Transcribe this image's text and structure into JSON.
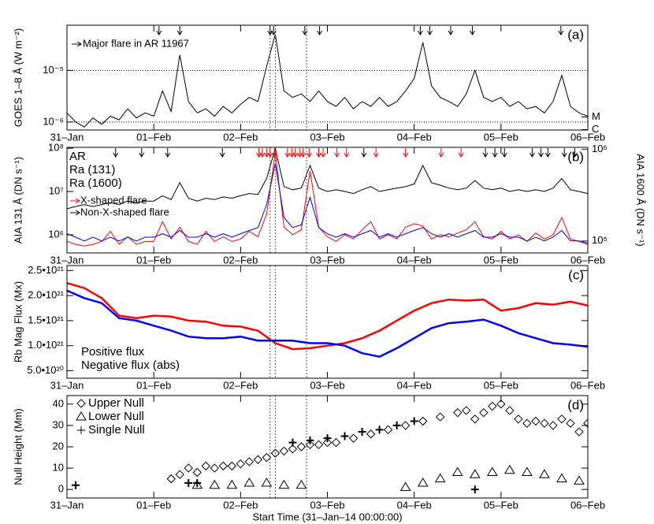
{
  "chart_data": [
    {
      "type": "line",
      "panel_label": "(a)",
      "ylabel": "GOES 1–8 Å (W m⁻²)",
      "ylog": true,
      "grid": true,
      "xlim": [
        0,
        6
      ],
      "ylim": [
        7e-07,
        7.5e-05
      ],
      "xticks": [
        {
          "value": 0,
          "label": "31–Jan"
        },
        {
          "value": 1,
          "label": "01–Feb"
        },
        {
          "value": 2,
          "label": "02–Feb"
        },
        {
          "value": 3,
          "label": "03–Feb"
        },
        {
          "value": 4,
          "label": "04–Feb"
        },
        {
          "value": 5,
          "label": "05–Feb"
        },
        {
          "value": 6,
          "label": "06–Feb"
        }
      ],
      "yticks": [
        {
          "value": 1e-06,
          "label": "10⁻⁶"
        },
        {
          "value": 1e-05,
          "label": "10⁻⁵"
        }
      ],
      "y2lim": [
        7e-07,
        7.5e-05
      ],
      "y2ticks": [
        {
          "value": 1e-06,
          "label": "C"
        },
        {
          "value": 1e-05,
          "label": "M"
        }
      ],
      "vlines": [
        2.34,
        2.4,
        2.76
      ],
      "annotation": "Major flare in AR 11967",
      "flare_times": [
        1.06,
        1.3,
        2.34,
        2.38,
        2.74,
        2.91,
        4.07,
        4.18,
        4.42,
        4.67,
        5.69
      ],
      "x": [
        0,
        0.1,
        0.2,
        0.3,
        0.4,
        0.5,
        0.6,
        0.7,
        0.8,
        0.9,
        1,
        1.1,
        1.2,
        1.3,
        1.4,
        1.5,
        1.6,
        1.7,
        1.8,
        1.9,
        2,
        2.1,
        2.2,
        2.3,
        2.4,
        2.5,
        2.6,
        2.7,
        2.8,
        2.9,
        3,
        3.1,
        3.2,
        3.3,
        3.4,
        3.5,
        3.6,
        3.7,
        3.8,
        3.9,
        4,
        4.1,
        4.2,
        4.3,
        4.4,
        4.5,
        4.6,
        4.7,
        4.8,
        4.9,
        5,
        5.1,
        5.2,
        5.3,
        5.4,
        5.5,
        5.6,
        5.7,
        5.8,
        5.9,
        6
      ],
      "series": [
        {
          "color": "#000000",
          "values": [
            1.5e-06,
            1e-06,
            8e-07,
            1.2e-06,
            9e-07,
            1.3e-06,
            1.1e-06,
            1.8e-06,
            1.2e-06,
            1.5e-06,
            1.3e-06,
            4e-06,
            1.6e-06,
            2e-05,
            2.5e-06,
            1.5e-06,
            1.8e-06,
            1.3e-06,
            2e-06,
            1.5e-06,
            2.2e-06,
            3e-06,
            2.5e-06,
            1.2e-05,
            5e-05,
            4e-06,
            3e-06,
            3.5e-06,
            2.5e-06,
            4e-06,
            2.5e-06,
            2e-06,
            3e-06,
            1.8e-06,
            2.5e-06,
            2e-06,
            3e-06,
            2e-06,
            2.5e-06,
            4e-06,
            7e-06,
            3.5e-05,
            5e-06,
            3e-06,
            2.5e-06,
            2e-06,
            3.5e-06,
            1e-05,
            3e-06,
            2.5e-06,
            3e-06,
            2e-06,
            2.5e-06,
            1.8e-06,
            2e-06,
            1.5e-06,
            2.5e-06,
            8e-06,
            2e-06,
            1.5e-06,
            1.3e-06
          ]
        }
      ]
    },
    {
      "type": "line",
      "panel_label": "(b)",
      "ylabel": "AIA 131 Å (DN s⁻¹)",
      "y2label": "AIA 1600 Å (DN s⁻¹)",
      "y2color": "#0000ff",
      "ylog": true,
      "y2log": true,
      "xlim": [
        0,
        6
      ],
      "ylim": [
        380000.0,
        105000000.0
      ],
      "y2lim": [
        74000.0,
        1050000.0
      ],
      "xticks": [
        {
          "value": 0,
          "label": "31–Jan"
        },
        {
          "value": 1,
          "label": "01–Feb"
        },
        {
          "value": 2,
          "label": "02–Feb"
        },
        {
          "value": 3,
          "label": "03–Feb"
        },
        {
          "value": 4,
          "label": "04–Feb"
        },
        {
          "value": 5,
          "label": "05–Feb"
        },
        {
          "value": 6,
          "label": "06–Feb"
        }
      ],
      "yticks": [
        {
          "value": 1000000.0,
          "label": "10⁶"
        },
        {
          "value": 10000000.0,
          "label": "10⁷"
        },
        {
          "value": 100000000.0,
          "label": "10⁸"
        }
      ],
      "y2ticks": [
        {
          "value": 100000.0,
          "label": "10⁵"
        },
        {
          "value": 1000000.0,
          "label": "10⁶"
        }
      ],
      "vlines": [
        2.34,
        2.4,
        2.76
      ],
      "flares": [
        {
          "name": "X-shaped flare",
          "color": "#ff0000",
          "times": [
            2.21,
            2.25,
            2.3,
            2.34,
            2.39,
            2.54,
            2.59,
            2.63,
            2.68,
            2.72,
            2.79,
            2.9,
            2.95,
            3.11,
            3.22,
            3.56,
            3.9,
            4.31,
            4.54
          ]
        },
        {
          "name": "Non-X-shaped flare",
          "color": "#000000",
          "times": [
            0.56,
            0.86,
            1.16,
            1.79,
            3.42,
            4.82,
            4.93,
            5.04,
            5.36,
            5.46,
            5.54,
            5.73,
            5.85
          ]
        }
      ],
      "x": [
        0,
        0.1,
        0.2,
        0.3,
        0.4,
        0.5,
        0.6,
        0.7,
        0.8,
        0.9,
        1,
        1.1,
        1.2,
        1.3,
        1.4,
        1.5,
        1.6,
        1.7,
        1.8,
        1.9,
        2,
        2.1,
        2.2,
        2.3,
        2.4,
        2.5,
        2.6,
        2.7,
        2.8,
        2.9,
        3,
        3.1,
        3.2,
        3.3,
        3.4,
        3.5,
        3.6,
        3.7,
        3.8,
        3.9,
        4,
        4.1,
        4.2,
        4.3,
        4.4,
        4.5,
        4.6,
        4.7,
        4.8,
        4.9,
        5,
        5.1,
        5.2,
        5.3,
        5.4,
        5.5,
        5.6,
        5.7,
        5.8,
        5.9,
        6
      ],
      "series": [
        {
          "name": "AR",
          "color": "#000000",
          "values": [
            4000000.0,
            4500000.0,
            5000000.0,
            4500000.0,
            5000000.0,
            5500000.0,
            5000000.0,
            6000000.0,
            5500000.0,
            6000000.0,
            6000000.0,
            8000000.0,
            6500000.0,
            16000000.0,
            7000000.0,
            6000000.0,
            7000000.0,
            6500000.0,
            7500000.0,
            7000000.0,
            8000000.0,
            9000000.0,
            8500000.0,
            20000000.0,
            100000000.0,
            13000000.0,
            11000000.0,
            12000000.0,
            40000000.0,
            12000000.0,
            10000000.0,
            11000000.0,
            10000000.0,
            9000000.0,
            11000000.0,
            13000000.0,
            10000000.0,
            11000000.0,
            12000000.0,
            13000000.0,
            15000000.0,
            40000000.0,
            16000000.0,
            14000000.0,
            12000000.0,
            11000000.0,
            12000000.0,
            18000000.0,
            12000000.0,
            11000000.0,
            12000000.0,
            10000000.0,
            11000000.0,
            10000000.0,
            11000000.0,
            10000000.0,
            12000000.0,
            20000000.0,
            11000000.0,
            10000000.0,
            9000000.0
          ]
        },
        {
          "name": "Ra (131)",
          "color": "#ff0000",
          "values": [
            700000.0,
            600000.0,
            550000.0,
            600000.0,
            700000.0,
            1200000.0,
            600000.0,
            900000.0,
            600000.0,
            700000.0,
            700000.0,
            2000000.0,
            800000.0,
            1500000.0,
            700000.0,
            600000.0,
            1200000.0,
            700000.0,
            900000.0,
            700000.0,
            800000.0,
            1200000.0,
            900000.0,
            3000000.0,
            80000000.0,
            1500000.0,
            1000000.0,
            1300000.0,
            30000000.0,
            1500000.0,
            900000.0,
            700000.0,
            1000000.0,
            800000.0,
            1300000.0,
            2000000.0,
            800000.0,
            1000000.0,
            800000.0,
            1500000.0,
            1800000.0,
            1600000.0,
            800000.0,
            1000000.0,
            900000.0,
            1100000.0,
            1300000.0,
            2000000.0,
            900000.0,
            800000.0,
            1200000.0,
            800000.0,
            1000000.0,
            700000.0,
            1100000.0,
            800000.0,
            1000000.0,
            2500000.0,
            800000.0,
            700000.0,
            600000.0
          ]
        },
        {
          "name": "Ra (1600)",
          "color": "#0000ff",
          "axis": "y2",
          "values": [
            120000.0,
            110000.0,
            100000.0,
            110000.0,
            100000.0,
            110000.0,
            100000.0,
            110000.0,
            100000.0,
            110000.0,
            110000.0,
            120000.0,
            110000.0,
            130000.0,
            110000.0,
            110000.0,
            120000.0,
            110000.0,
            120000.0,
            110000.0,
            120000.0,
            130000.0,
            140000.0,
            250000.0,
            700000.0,
            180000.0,
            140000.0,
            150000.0,
            300000.0,
            140000.0,
            120000.0,
            110000.0,
            120000.0,
            110000.0,
            120000.0,
            130000.0,
            110000.0,
            120000.0,
            110000.0,
            120000.0,
            130000.0,
            140000.0,
            120000.0,
            110000.0,
            120000.0,
            110000.0,
            120000.0,
            130000.0,
            110000.0,
            110000.0,
            120000.0,
            110000.0,
            110000.0,
            100000.0,
            110000.0,
            100000.0,
            110000.0,
            130000.0,
            100000.0,
            100000.0,
            95000.0
          ]
        }
      ]
    },
    {
      "type": "line",
      "panel_label": "(c)",
      "ylabel": "Rb Mag Flux (Mx)",
      "xlim": [
        0,
        6
      ],
      "ylim": [
        3.5e+20,
        2.6e+21
      ],
      "xticks": [
        {
          "value": 0,
          "label": "31–Jan"
        },
        {
          "value": 1,
          "label": "01–Feb"
        },
        {
          "value": 2,
          "label": "02–Feb"
        },
        {
          "value": 3,
          "label": "03–Feb"
        },
        {
          "value": 4,
          "label": "04–Feb"
        },
        {
          "value": 5,
          "label": "05–Feb"
        },
        {
          "value": 6,
          "label": "06–Feb"
        }
      ],
      "yticks": [
        {
          "value": 5e+20,
          "label": "5.0•10²⁰"
        },
        {
          "value": 1e+21,
          "label": "1.0•10²¹"
        },
        {
          "value": 1.5e+21,
          "label": "1.5•10²¹"
        },
        {
          "value": 2e+21,
          "label": "2.0•10²¹"
        },
        {
          "value": 2.5e+21,
          "label": "2.5•10²¹"
        }
      ],
      "vlines": [
        2.34,
        2.4,
        2.76
      ],
      "x": [
        0,
        0.2,
        0.4,
        0.6,
        0.8,
        1,
        1.2,
        1.4,
        1.6,
        1.8,
        2,
        2.2,
        2.4,
        2.6,
        2.8,
        3,
        3.2,
        3.4,
        3.6,
        3.8,
        4,
        4.2,
        4.4,
        4.6,
        4.8,
        5,
        5.2,
        5.4,
        5.6,
        5.8,
        6
      ],
      "series": [
        {
          "name": "Positive flux",
          "color": "#ff0000",
          "values": [
            2.25e+21,
            2.15e+21,
            1.95e+21,
            1.6e+21,
            1.55e+21,
            1.6e+21,
            1.58e+21,
            1.5e+21,
            1.48e+21,
            1.4e+21,
            1.38e+21,
            1.3e+21,
            1.05e+21,
            9.3e+20,
            9.5e+20,
            1e+21,
            1.05e+21,
            1.15e+21,
            1.3e+21,
            1.5e+21,
            1.7e+21,
            1.85e+21,
            1.92e+21,
            1.9e+21,
            1.92e+21,
            1.7e+21,
            1.75e+21,
            1.85e+21,
            1.82e+21,
            1.88e+21,
            1.8e+21
          ]
        },
        {
          "name": "Negative flux (abs)",
          "color": "#0000ff",
          "values": [
            2.1e+21,
            1.95e+21,
            1.85e+21,
            1.55e+21,
            1.5e+21,
            1.4e+21,
            1.3e+21,
            1.18e+21,
            1.15e+21,
            1.15e+21,
            1.18e+21,
            1.1e+21,
            1.1e+21,
            1.1e+21,
            1.05e+21,
            1.05e+21,
            1e+21,
            8.5e+20,
            7.8e+20,
            9.5e+20,
            1.15e+21,
            1.35e+21,
            1.45e+21,
            1.48e+21,
            1.52e+21,
            1.4e+21,
            1.25e+21,
            1.15e+21,
            1.05e+21,
            1.02e+21,
            9.8e+20
          ]
        }
      ]
    },
    {
      "type": "scatter",
      "panel_label": "(d)",
      "ylabel": "Null Height (Mm)",
      "xlabel": "Start Time (31–Jan–14 00:00:00)",
      "xlim": [
        0,
        6
      ],
      "ylim": [
        -4,
        44
      ],
      "xticks": [
        {
          "value": 0,
          "label": "31–Jan"
        },
        {
          "value": 1,
          "label": "01–Feb"
        },
        {
          "value": 2,
          "label": "02–Feb"
        },
        {
          "value": 3,
          "label": "03–Feb"
        },
        {
          "value": 4,
          "label": "04–Feb"
        },
        {
          "value": 5,
          "label": "05–Feb"
        },
        {
          "value": 6,
          "label": "06–Feb"
        }
      ],
      "yticks": [
        0,
        10,
        20,
        30,
        40
      ],
      "vlines": [
        2.34,
        2.4,
        2.76
      ],
      "series": [
        {
          "name": "Upper Null",
          "marker": "diamond",
          "color": "#000000",
          "x": [
            1.2,
            1.3,
            1.4,
            1.5,
            1.6,
            1.7,
            1.8,
            1.9,
            2,
            2.1,
            2.2,
            2.3,
            2.4,
            2.5,
            2.6,
            2.7,
            2.8,
            2.9,
            3,
            3.1,
            3.3,
            3.5,
            3.7,
            3.9,
            4.1,
            4.3,
            4.5,
            4.6,
            4.7,
            4.8,
            4.9,
            5,
            5.1,
            5.2,
            5.3,
            5.4,
            5.5,
            5.6,
            5.7,
            5.8,
            5.9,
            6
          ],
          "values": [
            5,
            7,
            10,
            8,
            11,
            10,
            11,
            11,
            12,
            13,
            14,
            15,
            17,
            18,
            19,
            20,
            21,
            21,
            22,
            22,
            24,
            26,
            28,
            30,
            32,
            34,
            36,
            37,
            33,
            36,
            39,
            40,
            37,
            33,
            31,
            32,
            31,
            30,
            33,
            31,
            27,
            31
          ]
        },
        {
          "name": "Lower Null",
          "marker": "triangle",
          "color": "#000000",
          "x": [
            1.5,
            1.7,
            1.9,
            2.1,
            2.3,
            2.5,
            2.7,
            3.9,
            4.1,
            4.3,
            4.5,
            4.7,
            4.9,
            5.1,
            5.3,
            5.5,
            5.7,
            5.9
          ],
          "values": [
            2,
            2,
            2,
            3,
            3,
            2,
            2,
            1,
            3,
            5,
            8,
            7,
            8,
            9,
            8,
            7,
            5,
            4
          ]
        },
        {
          "name": "Single Null",
          "marker": "plus",
          "color": "#000000",
          "x": [
            0.1,
            1.4,
            1.5,
            2.6,
            2.8,
            3,
            3.2,
            3.4,
            3.6,
            3.8,
            4,
            4.7
          ],
          "values": [
            2,
            3,
            3,
            22,
            23,
            24,
            25,
            27,
            28,
            30,
            32,
            0
          ]
        }
      ]
    }
  ]
}
